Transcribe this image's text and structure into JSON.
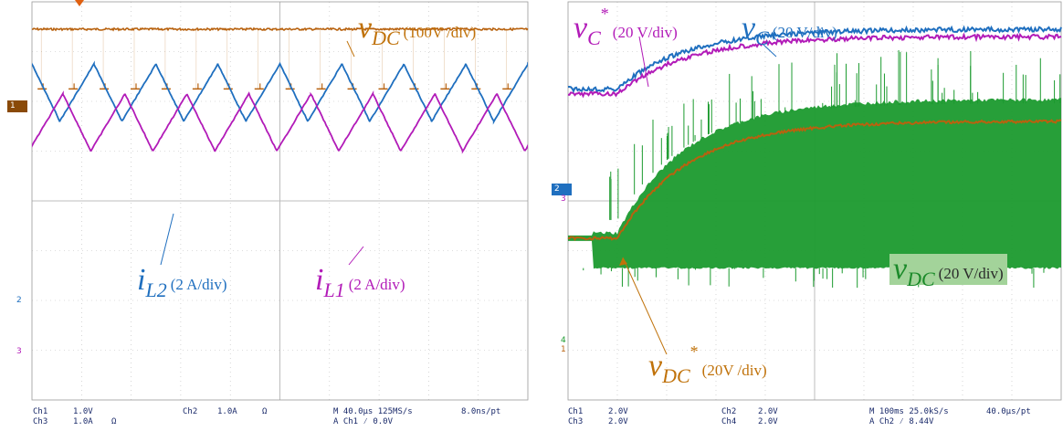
{
  "chart_data": [
    {
      "type": "line",
      "title": "",
      "grid": true,
      "x_divisions": 10,
      "y_divisions": 8,
      "series": [
        {
          "name": "vDC",
          "scale": "(100V /div)",
          "color": "#b8620f",
          "level_div": 3.45,
          "ripple": "switching"
        },
        {
          "name": "iL2",
          "scale": "(2 A/div)",
          "color": "#1f6fbf",
          "min_div": 1.6,
          "max_div": 2.75,
          "periods": 8
        },
        {
          "name": "iL1",
          "scale": "(2 A/div)",
          "color": "#b21bb8",
          "min_div": 1.0,
          "max_div": 2.15,
          "periods": 8
        }
      ],
      "labels": {
        "vdc": {
          "sym": "v",
          "sub": "DC",
          "scale": "(100V /div)"
        },
        "il2": {
          "sym": "i",
          "sub": "L2",
          "scale": "(2 A/div)"
        },
        "il1": {
          "sym": "i",
          "sub": "L1",
          "scale": "(2 A/div)"
        }
      },
      "markers": {
        "ch1": "1",
        "ch2": "2",
        "ch3": "3"
      },
      "status": {
        "ch1": "Ch1",
        "ch1_scale": "1.0V",
        "ch3": "Ch3",
        "ch3_scale": "1.0A",
        "ch3_unit": "Ω",
        "ch2": "Ch2",
        "ch2_scale": "1.0A",
        "ch2_unit": "Ω",
        "time": "M 40.0µs 125MS/s",
        "trig": "A  Ch1  ⁄  0.0V",
        "pt": "8.0ns/pt"
      }
    },
    {
      "type": "line",
      "title": "",
      "grid": true,
      "x_divisions": 10,
      "y_divisions": 8,
      "series": [
        {
          "name": "vC",
          "scale": "(20 V/div)",
          "color": "#1f6fbf",
          "start_div": 2.25,
          "final_div": 3.45
        },
        {
          "name": "vC*",
          "scale": "(20 V/div)",
          "color": "#b21bb8",
          "start_div": 2.15,
          "final_div": 3.3
        },
        {
          "name": "vDC",
          "scale": "(20 V/div)",
          "color": "#1b9a2e",
          "envelope_min_div": -1.35,
          "envelope_max_div": 1.65
        },
        {
          "name": "vDC*",
          "scale": "(20V /div)",
          "color": "#b8620f",
          "start_div": -0.75,
          "final_div": 1.6
        }
      ],
      "labels": {
        "vcstar": {
          "sym": "v",
          "sub": "C",
          "sup": "*",
          "scale": "(20 V/div)"
        },
        "vc": {
          "sym": "v",
          "sub": "C",
          "scale": "(20 V/div)"
        },
        "vdc": {
          "sym": "v",
          "sub": "DC",
          "scale": "(20 V/div)"
        },
        "vdcstar": {
          "sym": "v",
          "sub": "DC",
          "sup": "*",
          "scale": "(20V /div)"
        }
      },
      "markers": {
        "ch2": "2",
        "ch3": "3",
        "ch4": "4",
        "ch1": "1"
      },
      "status": {
        "ch1": "Ch1",
        "ch1_scale": "2.0V",
        "ch3": "Ch3",
        "ch3_scale": "2.0V",
        "ch2": "Ch2",
        "ch2_scale": "2.0V",
        "ch4": "Ch4",
        "ch4_scale": "2.0V",
        "time": "M 100ms 25.0kS/s",
        "trig": "A  Ch2  ⁄  8.44V",
        "pt": "40.0µs/pt"
      }
    }
  ],
  "colors": {
    "grid": "#bcbcbc",
    "text": "#1a2a6a",
    "vdc_box": "#a3d39a"
  }
}
